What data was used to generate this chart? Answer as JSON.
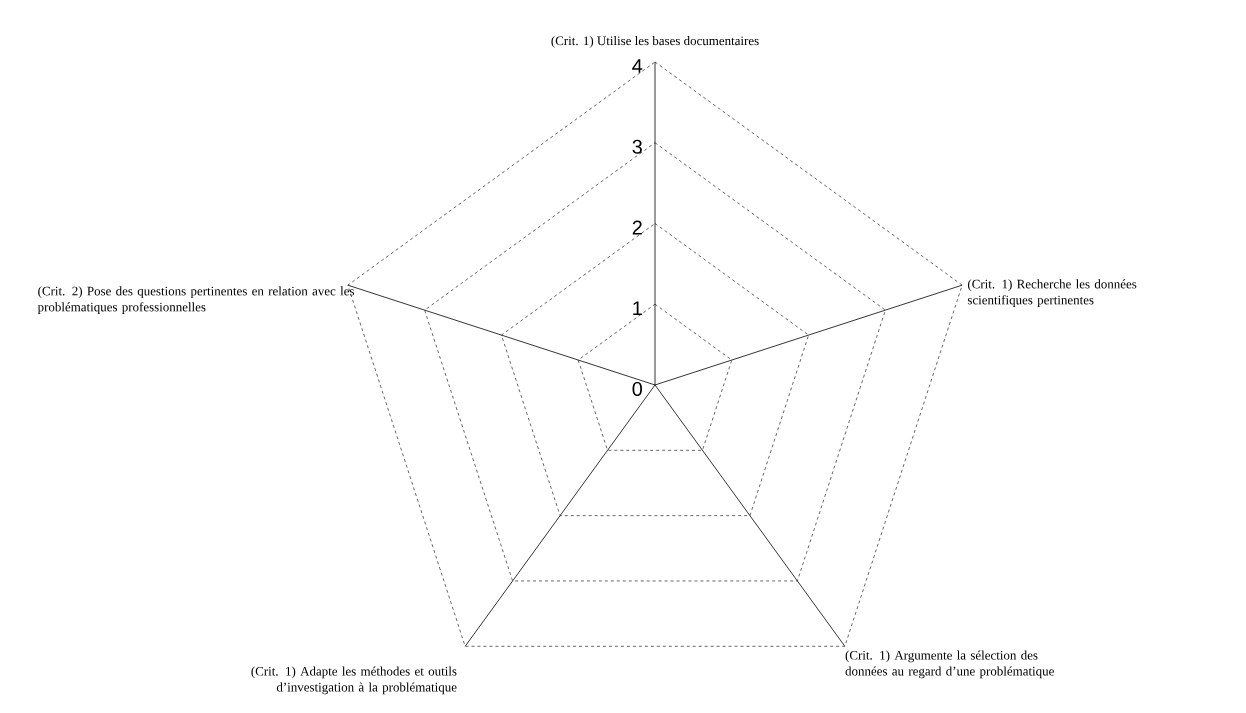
{
  "chart_data": {
    "type": "radar",
    "categories": [
      "(Crit. 1) Utilise les bases documentaires",
      "(Crit. 1) Recherche les données scientifiques pertinentes",
      "(Crit. 1) Argumente la sélection des données au regard d’une problématique",
      "(Crit. 1) Adapte les méthodes et outils d’investigation à la problématique",
      "(Crit. 2) Pose des questions pertinentes en relation avec les problématiques professionnelles"
    ],
    "ylim": [
      0,
      4
    ],
    "yticks": [
      0,
      1,
      2,
      3,
      4
    ],
    "grid": true,
    "line_style": "dashed"
  }
}
